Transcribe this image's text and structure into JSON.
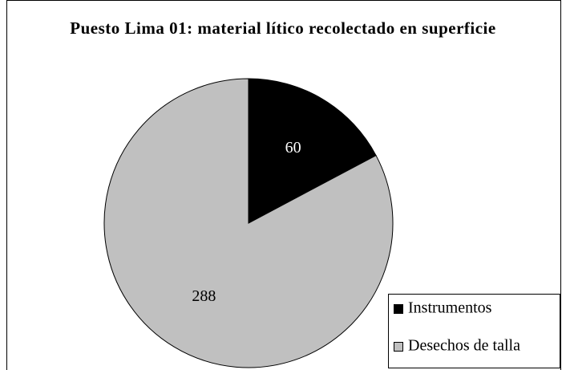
{
  "chart_data": {
    "type": "pie",
    "title": "Puesto Lima 01: material lítico recolectado en superficie",
    "categories": [
      "Instrumentos",
      "Desechos de talla"
    ],
    "values": [
      60,
      288
    ],
    "colors": [
      "#000000",
      "#c0c0c0"
    ],
    "legend": "lower right"
  }
}
